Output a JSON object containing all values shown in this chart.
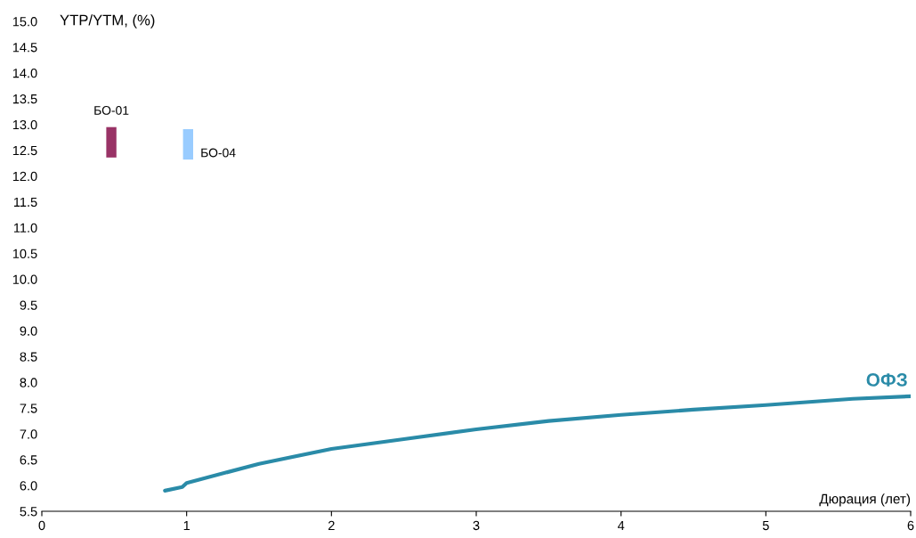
{
  "chart_data": {
    "type": "line",
    "xlabel": "Дюрация (лет)",
    "ylabel": "YTP/YTM, (%)",
    "xlim": [
      0,
      6
    ],
    "xticks": [
      0,
      1,
      2,
      3,
      4,
      5,
      6
    ],
    "ylim": [
      5.5,
      15.0
    ],
    "yticks": [
      {
        "value": 5.5,
        "label": "5.5"
      },
      {
        "value": 6,
        "label": "6.0"
      },
      {
        "value": 6.5,
        "label": "6.5"
      },
      {
        "value": 7,
        "label": "7.0"
      },
      {
        "value": 7.5,
        "label": "7.5"
      },
      {
        "value": 8,
        "label": "8.0"
      },
      {
        "value": 8.5,
        "label": "8.5"
      },
      {
        "value": 9,
        "label": "9.0"
      },
      {
        "value": 9.5,
        "label": "9.5"
      },
      {
        "value": 10,
        "label": "10.0"
      },
      {
        "value": 10.5,
        "label": "10.5"
      },
      {
        "value": 11,
        "label": "11.0"
      },
      {
        "value": 11.5,
        "label": "11.5"
      },
      {
        "value": 12,
        "label": "12.0"
      },
      {
        "value": 12.5,
        "label": "12.5"
      },
      {
        "value": 13,
        "label": "13.0"
      },
      {
        "value": 13.5,
        "label": "13.5"
      },
      {
        "value": 14,
        "label": "14.0"
      },
      {
        "value": 14.5,
        "label": "14.5"
      },
      {
        "value": 15,
        "label": "15.0"
      }
    ],
    "grid": false,
    "legend": false,
    "series": [
      {
        "name": "ОФЗ",
        "color": "#2a8ba8",
        "x": [
          0.85,
          0.97,
          1.0,
          1.5,
          2.0,
          2.5,
          3.0,
          3.5,
          4.0,
          4.5,
          5.0,
          5.6,
          6.0
        ],
        "values": [
          5.9,
          5.97,
          6.05,
          6.42,
          6.71,
          6.9,
          7.09,
          7.25,
          7.37,
          7.47,
          7.56,
          7.68,
          7.73
        ]
      },
      {
        "type": "bar",
        "color": "#993366",
        "x": [
          0.48
        ],
        "base": [
          12.36
        ],
        "values": [
          0.59
        ]
      },
      {
        "type": "bar",
        "color": "#99ccff",
        "x": [
          1.01
        ],
        "base": [
          12.32
        ],
        "values": [
          0.59
        ]
      }
    ],
    "annotations": [
      {
        "text": "БО-01",
        "x": 0.48,
        "y": 12.95
      },
      {
        "text": "БО-04",
        "x": 1.01,
        "y": 12.32
      }
    ]
  }
}
